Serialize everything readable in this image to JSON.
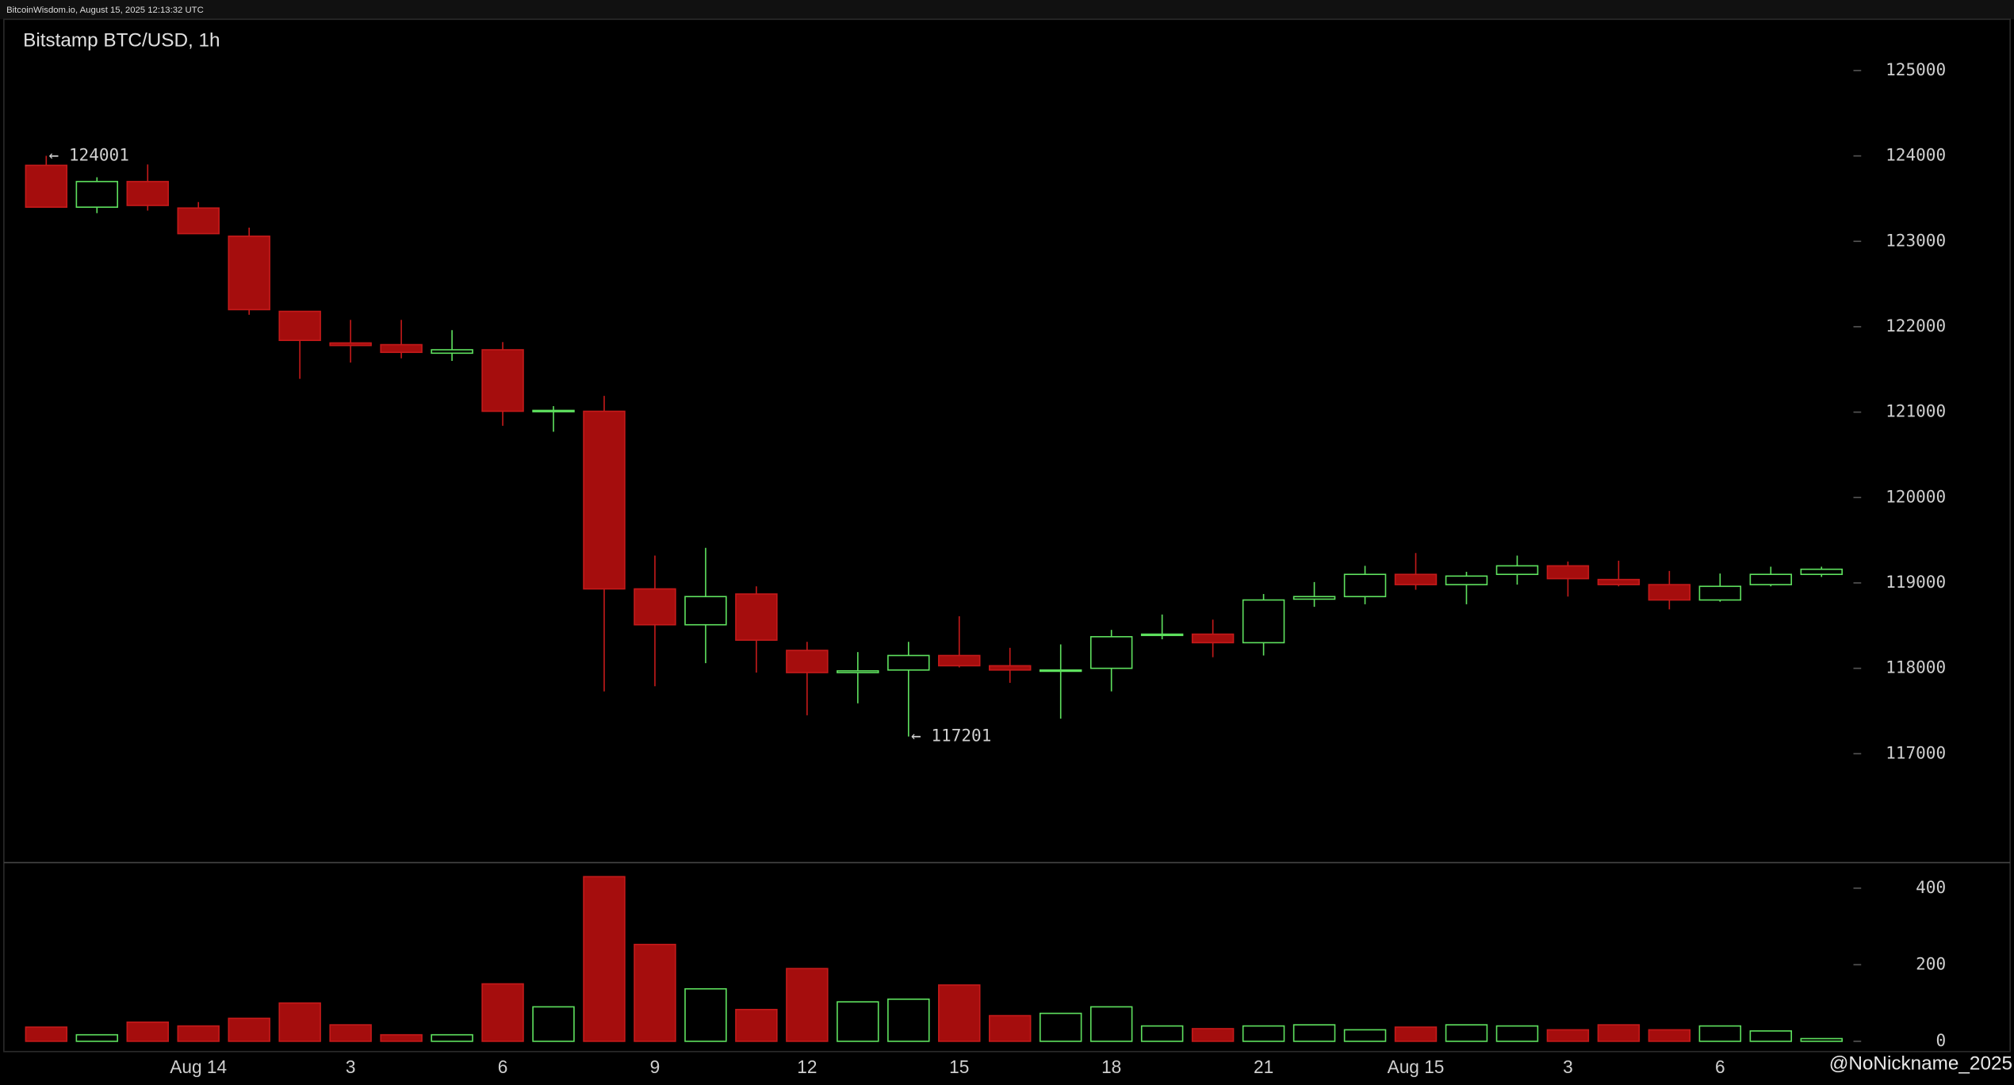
{
  "header": "BitcoinWisdom.io, August 15, 2025 12:13:32 UTC",
  "watermark": "@NoNickname_2025",
  "chart_data": {
    "type": "candlestick",
    "title": "Bitstamp BTC/USD, 1h",
    "categories": [
      null,
      null,
      null,
      "Aug 14",
      null,
      null,
      "3",
      null,
      null,
      "6",
      null,
      null,
      "9",
      null,
      null,
      "12",
      null,
      null,
      "15",
      null,
      null,
      "18",
      null,
      null,
      "21",
      null,
      null,
      "Aug 15",
      null,
      null,
      "3",
      null,
      null,
      "6",
      null,
      null
    ],
    "open": [
      123890,
      123400,
      123700,
      123390,
      123060,
      122180,
      121810,
      121790,
      121690,
      121730,
      121010,
      121010,
      118930,
      118510,
      118870,
      118210,
      117950,
      117980,
      118150,
      118030,
      117970,
      118000,
      118390,
      118400,
      118300,
      118810,
      118840,
      119100,
      118980,
      119100,
      119200,
      119040,
      118980,
      118800,
      118980,
      119100
    ],
    "high": [
      124001,
      123750,
      123900,
      123460,
      123160,
      122180,
      122080,
      122080,
      121960,
      121820,
      121070,
      121190,
      119320,
      119410,
      118960,
      118310,
      118190,
      118310,
      118610,
      118240,
      118280,
      118450,
      118630,
      118570,
      118870,
      119010,
      119200,
      119350,
      119130,
      119320,
      119250,
      119260,
      119140,
      119110,
      119190,
      119190
    ],
    "low": [
      123400,
      123330,
      123360,
      123090,
      122140,
      121390,
      121580,
      121630,
      121600,
      120840,
      120770,
      117730,
      117790,
      118060,
      117950,
      117450,
      117590,
      117201,
      118010,
      117830,
      117410,
      117730,
      118340,
      118130,
      118150,
      118720,
      118750,
      118920,
      118750,
      118980,
      118840,
      118960,
      118690,
      118780,
      118960,
      119070
    ],
    "close": [
      123400,
      123700,
      123420,
      123090,
      122200,
      121840,
      121780,
      121700,
      121730,
      121010,
      121020,
      118930,
      118510,
      118840,
      118330,
      117950,
      117970,
      118150,
      118030,
      117980,
      117980,
      118370,
      118400,
      118300,
      118800,
      118840,
      119100,
      118980,
      119080,
      119200,
      119050,
      118980,
      118800,
      118960,
      119100,
      119160
    ],
    "volume": [
      37,
      17,
      50,
      40,
      60,
      100,
      43,
      17,
      17,
      150,
      90,
      430,
      253,
      137,
      83,
      190,
      103,
      110,
      147,
      67,
      73,
      90,
      40,
      33,
      40,
      43,
      30,
      37,
      43,
      40,
      30,
      43,
      30,
      40,
      27,
      7
    ],
    "up_color": "#5ee05e",
    "down_color": "#c41a1a",
    "ylim": [
      115740,
      125600
    ],
    "yticks": [
      117000,
      118000,
      119000,
      120000,
      121000,
      122000,
      123000,
      124000,
      125000
    ],
    "volume_ylim": [
      0,
      460
    ],
    "volume_yticks": [
      0,
      200,
      400
    ],
    "annotations": [
      {
        "text": "← 124001",
        "value": 124001
      },
      {
        "text": "← 117201",
        "value": 117201
      }
    ]
  }
}
